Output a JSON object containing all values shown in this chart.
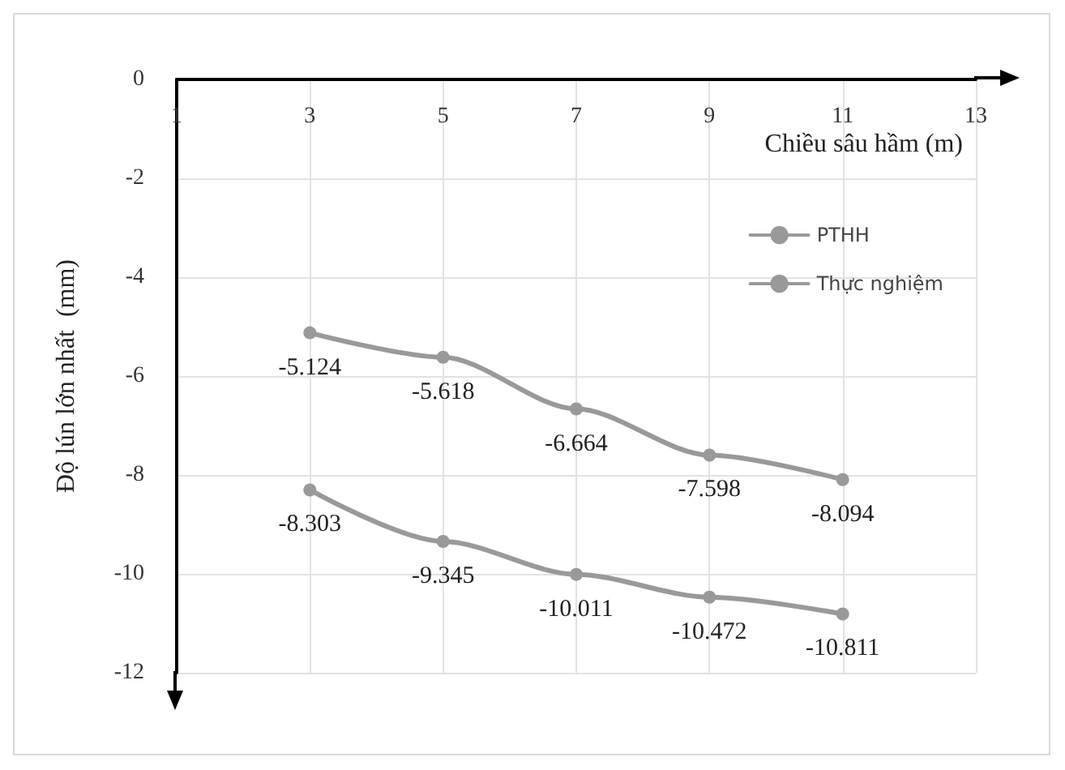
{
  "chart_data": {
    "type": "line",
    "xlabel": "Chiều sâu hầm (m)",
    "ylabel": "Độ lún lớn nhất  (mm)",
    "x": [
      3,
      5,
      7,
      9,
      11
    ],
    "series": [
      {
        "name": "PTHH",
        "color": "#999999",
        "values": [
          -5.124,
          -5.618,
          -6.664,
          -7.598,
          -8.094
        ]
      },
      {
        "name": "Thực nghiệm",
        "color": "#999999",
        "values": [
          -8.303,
          -9.345,
          -10.011,
          -10.472,
          -10.811
        ]
      }
    ],
    "xlim": [
      1,
      13
    ],
    "xticks": [
      1,
      3,
      5,
      7,
      9,
      11,
      13
    ],
    "ylim": [
      -12,
      0
    ],
    "yticks": [
      -12,
      -10,
      -8,
      -6,
      -4,
      -2,
      0
    ],
    "grid": true,
    "legend": "top right",
    "marker": "circle",
    "line_style": "solid",
    "data_labels": true
  }
}
